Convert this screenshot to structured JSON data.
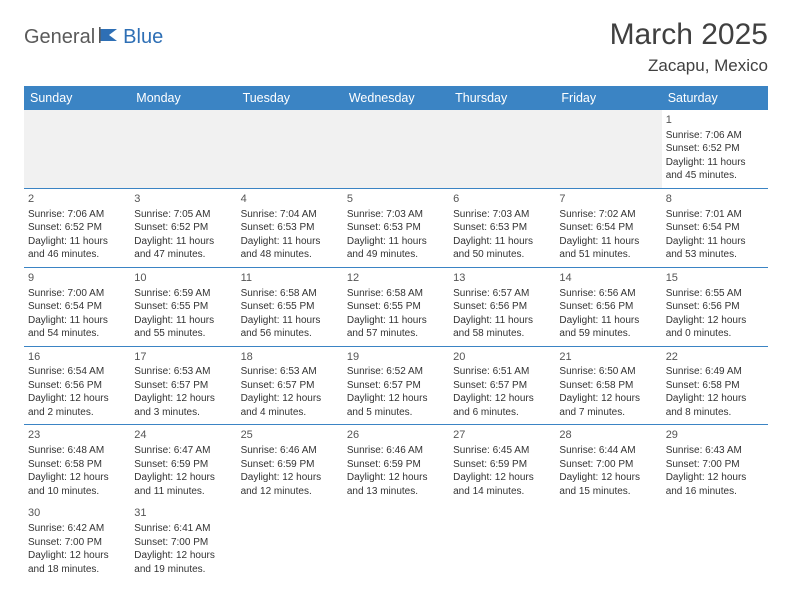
{
  "logo": {
    "part1": "General",
    "part2": "Blue"
  },
  "title": "March 2025",
  "location": "Zacapu, Mexico",
  "colors": {
    "header_bg": "#3b84c4",
    "header_fg": "#ffffff",
    "rule": "#3b84c4",
    "empty_bg": "#f1f1f1",
    "logo_gray": "#5a5a5a",
    "logo_blue": "#2e6fb5"
  },
  "weekdays": [
    "Sunday",
    "Monday",
    "Tuesday",
    "Wednesday",
    "Thursday",
    "Friday",
    "Saturday"
  ],
  "weeks": [
    [
      null,
      null,
      null,
      null,
      null,
      null,
      {
        "d": "1",
        "sr": "Sunrise: 7:06 AM",
        "ss": "Sunset: 6:52 PM",
        "dl1": "Daylight: 11 hours",
        "dl2": "and 45 minutes."
      }
    ],
    [
      {
        "d": "2",
        "sr": "Sunrise: 7:06 AM",
        "ss": "Sunset: 6:52 PM",
        "dl1": "Daylight: 11 hours",
        "dl2": "and 46 minutes."
      },
      {
        "d": "3",
        "sr": "Sunrise: 7:05 AM",
        "ss": "Sunset: 6:52 PM",
        "dl1": "Daylight: 11 hours",
        "dl2": "and 47 minutes."
      },
      {
        "d": "4",
        "sr": "Sunrise: 7:04 AM",
        "ss": "Sunset: 6:53 PM",
        "dl1": "Daylight: 11 hours",
        "dl2": "and 48 minutes."
      },
      {
        "d": "5",
        "sr": "Sunrise: 7:03 AM",
        "ss": "Sunset: 6:53 PM",
        "dl1": "Daylight: 11 hours",
        "dl2": "and 49 minutes."
      },
      {
        "d": "6",
        "sr": "Sunrise: 7:03 AM",
        "ss": "Sunset: 6:53 PM",
        "dl1": "Daylight: 11 hours",
        "dl2": "and 50 minutes."
      },
      {
        "d": "7",
        "sr": "Sunrise: 7:02 AM",
        "ss": "Sunset: 6:54 PM",
        "dl1": "Daylight: 11 hours",
        "dl2": "and 51 minutes."
      },
      {
        "d": "8",
        "sr": "Sunrise: 7:01 AM",
        "ss": "Sunset: 6:54 PM",
        "dl1": "Daylight: 11 hours",
        "dl2": "and 53 minutes."
      }
    ],
    [
      {
        "d": "9",
        "sr": "Sunrise: 7:00 AM",
        "ss": "Sunset: 6:54 PM",
        "dl1": "Daylight: 11 hours",
        "dl2": "and 54 minutes."
      },
      {
        "d": "10",
        "sr": "Sunrise: 6:59 AM",
        "ss": "Sunset: 6:55 PM",
        "dl1": "Daylight: 11 hours",
        "dl2": "and 55 minutes."
      },
      {
        "d": "11",
        "sr": "Sunrise: 6:58 AM",
        "ss": "Sunset: 6:55 PM",
        "dl1": "Daylight: 11 hours",
        "dl2": "and 56 minutes."
      },
      {
        "d": "12",
        "sr": "Sunrise: 6:58 AM",
        "ss": "Sunset: 6:55 PM",
        "dl1": "Daylight: 11 hours",
        "dl2": "and 57 minutes."
      },
      {
        "d": "13",
        "sr": "Sunrise: 6:57 AM",
        "ss": "Sunset: 6:56 PM",
        "dl1": "Daylight: 11 hours",
        "dl2": "and 58 minutes."
      },
      {
        "d": "14",
        "sr": "Sunrise: 6:56 AM",
        "ss": "Sunset: 6:56 PM",
        "dl1": "Daylight: 11 hours",
        "dl2": "and 59 minutes."
      },
      {
        "d": "15",
        "sr": "Sunrise: 6:55 AM",
        "ss": "Sunset: 6:56 PM",
        "dl1": "Daylight: 12 hours",
        "dl2": "and 0 minutes."
      }
    ],
    [
      {
        "d": "16",
        "sr": "Sunrise: 6:54 AM",
        "ss": "Sunset: 6:56 PM",
        "dl1": "Daylight: 12 hours",
        "dl2": "and 2 minutes."
      },
      {
        "d": "17",
        "sr": "Sunrise: 6:53 AM",
        "ss": "Sunset: 6:57 PM",
        "dl1": "Daylight: 12 hours",
        "dl2": "and 3 minutes."
      },
      {
        "d": "18",
        "sr": "Sunrise: 6:53 AM",
        "ss": "Sunset: 6:57 PM",
        "dl1": "Daylight: 12 hours",
        "dl2": "and 4 minutes."
      },
      {
        "d": "19",
        "sr": "Sunrise: 6:52 AM",
        "ss": "Sunset: 6:57 PM",
        "dl1": "Daylight: 12 hours",
        "dl2": "and 5 minutes."
      },
      {
        "d": "20",
        "sr": "Sunrise: 6:51 AM",
        "ss": "Sunset: 6:57 PM",
        "dl1": "Daylight: 12 hours",
        "dl2": "and 6 minutes."
      },
      {
        "d": "21",
        "sr": "Sunrise: 6:50 AM",
        "ss": "Sunset: 6:58 PM",
        "dl1": "Daylight: 12 hours",
        "dl2": "and 7 minutes."
      },
      {
        "d": "22",
        "sr": "Sunrise: 6:49 AM",
        "ss": "Sunset: 6:58 PM",
        "dl1": "Daylight: 12 hours",
        "dl2": "and 8 minutes."
      }
    ],
    [
      {
        "d": "23",
        "sr": "Sunrise: 6:48 AM",
        "ss": "Sunset: 6:58 PM",
        "dl1": "Daylight: 12 hours",
        "dl2": "and 10 minutes."
      },
      {
        "d": "24",
        "sr": "Sunrise: 6:47 AM",
        "ss": "Sunset: 6:59 PM",
        "dl1": "Daylight: 12 hours",
        "dl2": "and 11 minutes."
      },
      {
        "d": "25",
        "sr": "Sunrise: 6:46 AM",
        "ss": "Sunset: 6:59 PM",
        "dl1": "Daylight: 12 hours",
        "dl2": "and 12 minutes."
      },
      {
        "d": "26",
        "sr": "Sunrise: 6:46 AM",
        "ss": "Sunset: 6:59 PM",
        "dl1": "Daylight: 12 hours",
        "dl2": "and 13 minutes."
      },
      {
        "d": "27",
        "sr": "Sunrise: 6:45 AM",
        "ss": "Sunset: 6:59 PM",
        "dl1": "Daylight: 12 hours",
        "dl2": "and 14 minutes."
      },
      {
        "d": "28",
        "sr": "Sunrise: 6:44 AM",
        "ss": "Sunset: 7:00 PM",
        "dl1": "Daylight: 12 hours",
        "dl2": "and 15 minutes."
      },
      {
        "d": "29",
        "sr": "Sunrise: 6:43 AM",
        "ss": "Sunset: 7:00 PM",
        "dl1": "Daylight: 12 hours",
        "dl2": "and 16 minutes."
      }
    ],
    [
      {
        "d": "30",
        "sr": "Sunrise: 6:42 AM",
        "ss": "Sunset: 7:00 PM",
        "dl1": "Daylight: 12 hours",
        "dl2": "and 18 minutes."
      },
      {
        "d": "31",
        "sr": "Sunrise: 6:41 AM",
        "ss": "Sunset: 7:00 PM",
        "dl1": "Daylight: 12 hours",
        "dl2": "and 19 minutes."
      },
      null,
      null,
      null,
      null,
      null
    ]
  ]
}
